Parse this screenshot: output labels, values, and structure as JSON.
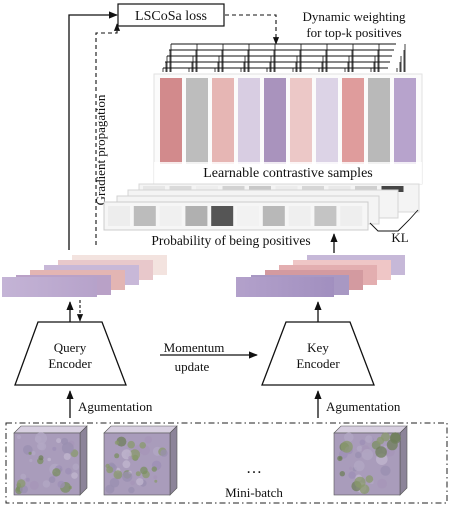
{
  "labels": {
    "loss": "LSCoSa loss",
    "dynamic_weighting_line1": "Dynamic weighting",
    "dynamic_weighting_line2": "for top-k positives",
    "gradient": "Gradient propagation",
    "learnable": "Learnable contrastive samples",
    "probability": "Probability of being positives",
    "kl": "KL",
    "query_line1": "Query",
    "query_line2": "Encoder",
    "key_line1": "Key",
    "key_line2": "Encoder",
    "momentum_line1": "Momentum",
    "momentum_line2": "update",
    "aug_left": "Agumentation",
    "aug_right": "Agumentation",
    "ellipsis": "…",
    "minibatch": "Mini-batch"
  },
  "colors": {
    "line": "#111111",
    "sample_bars": [
      "#d28a8c",
      "#bdbdbd",
      "#e6b6b4",
      "#d8cde2",
      "#a993bd",
      "#ecc8c7",
      "#dcd3e6",
      "#df9c9c",
      "#b9b9b9",
      "#b7a3cc"
    ],
    "prob_cells": [
      "#ededed",
      "#bcbcbc",
      "#f0f0f0",
      "#b0b0b0",
      "#555555",
      "#f2f2f2",
      "#b8b8b8",
      "#efefef",
      "#c4c4c4",
      "#eeeeee"
    ],
    "prob_back_cells": [
      "#e6e6e6",
      "#dadada",
      "#eeeeee",
      "#d2d2d2",
      "#c8c8c8",
      "#ececec",
      "#d6d6d6",
      "#e9e9e9",
      "#cfcfcf",
      "#454545"
    ],
    "query_strips": [
      "#f3e3df",
      "#e8c8cb",
      "#c8b8d8",
      "#e3b5b3",
      "#b9a1c7"
    ],
    "key_strips": [
      "#c6b8d8",
      "#efc6c6",
      "#e3aeb0",
      "#d39aa0",
      "#a898c3"
    ]
  }
}
